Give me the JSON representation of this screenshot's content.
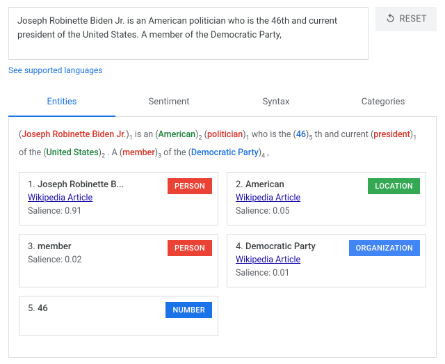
{
  "input": {
    "text": "Joseph Robinette Biden Jr. is an American politician who is the 46th and current president of the United States. A member of the Democratic Party,"
  },
  "reset_label": "RESET",
  "lang_link": "See supported languages",
  "tabs": [
    {
      "label": "Entities",
      "active": true
    },
    {
      "label": "Sentiment",
      "active": false
    },
    {
      "label": "Syntax",
      "active": false
    },
    {
      "label": "Categories",
      "active": false
    }
  ],
  "entity_colors": {
    "PERSON": "#d93025",
    "LOCATION": "#188038",
    "NUMBER": "#1967d2",
    "ORGANIZATION": "#1a73e8"
  },
  "badge_colors": {
    "PERSON": "#ea4335",
    "LOCATION": "#34a853",
    "NUMBER": "#1a73e8",
    "ORGANIZATION": "#4285f4"
  },
  "annotated": [
    {
      "t": "ent",
      "text": "Joseph Robinette Biden Jr.",
      "type": "PERSON",
      "sub": "1"
    },
    {
      "t": "txt",
      "text": " is an "
    },
    {
      "t": "ent",
      "text": "American",
      "type": "LOCATION",
      "sub": "2"
    },
    {
      "t": "txt",
      "text": " "
    },
    {
      "t": "ent",
      "text": "politician",
      "type": "PERSON",
      "sub": "1"
    },
    {
      "t": "txt",
      "text": " who is the "
    },
    {
      "t": "ent",
      "text": "46",
      "type": "NUMBER",
      "sub": "5"
    },
    {
      "t": "txt",
      "text": " th and current "
    },
    {
      "t": "ent",
      "text": "president",
      "type": "PERSON",
      "sub": "1"
    },
    {
      "t": "txt",
      "text": " of the "
    },
    {
      "t": "ent",
      "text": "United States",
      "type": "LOCATION",
      "sub": "2"
    },
    {
      "t": "txt",
      "text": " . A "
    },
    {
      "t": "ent",
      "text": "member",
      "type": "PERSON",
      "sub": "3"
    },
    {
      "t": "txt",
      "text": " of the "
    },
    {
      "t": "ent",
      "text": "Democratic Party",
      "type": "ORGANIZATION",
      "sub": "4"
    },
    {
      "t": "txt",
      "text": " ,"
    }
  ],
  "wiki_label": "Wikipedia Article",
  "salience_label": "Salience:",
  "entities": [
    {
      "idx": "1.",
      "name": "Joseph Robinette B...",
      "type": "PERSON",
      "wiki": true,
      "salience": "0.91"
    },
    {
      "idx": "2.",
      "name": "American",
      "type": "LOCATION",
      "wiki": true,
      "salience": "0.05"
    },
    {
      "idx": "3.",
      "name": "member",
      "type": "PERSON",
      "wiki": false,
      "salience": "0.02"
    },
    {
      "idx": "4.",
      "name": "Democratic Party",
      "type": "ORGANIZATION",
      "wiki": true,
      "salience": "0.01"
    },
    {
      "idx": "5.",
      "name": "46",
      "type": "NUMBER",
      "wiki": false,
      "salience": null
    }
  ]
}
